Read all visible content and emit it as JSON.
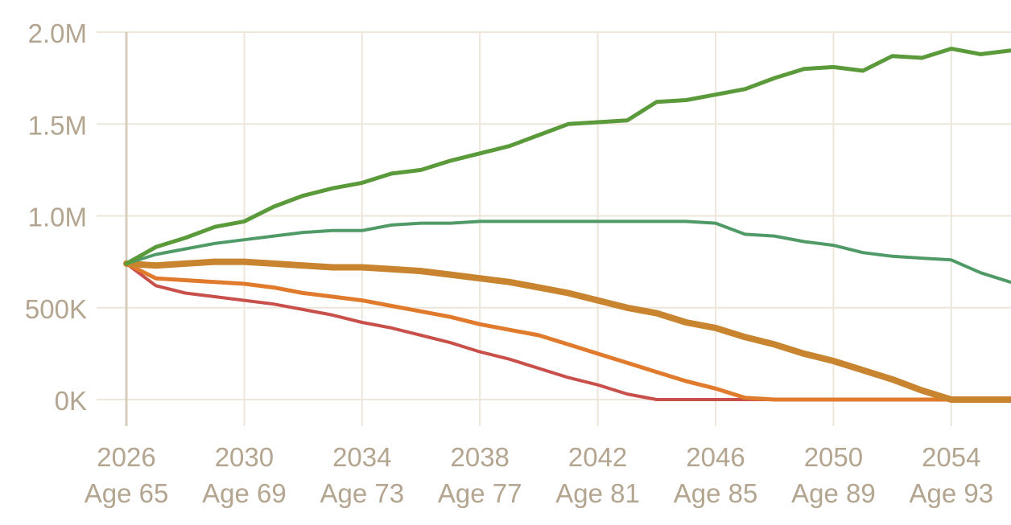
{
  "chart_data": {
    "type": "line",
    "title": "",
    "xlabel": "",
    "ylabel": "",
    "xlim": [
      2026,
      2056
    ],
    "ylim": [
      0,
      2000000
    ],
    "grid": true,
    "legend": "none",
    "x_ticks": [
      {
        "year": "2026",
        "age": "Age 65",
        "x": 2026
      },
      {
        "year": "2030",
        "age": "Age 69",
        "x": 2030
      },
      {
        "year": "2034",
        "age": "Age 73",
        "x": 2034
      },
      {
        "year": "2038",
        "age": "Age 77",
        "x": 2038
      },
      {
        "year": "2042",
        "age": "Age 81",
        "x": 2042
      },
      {
        "year": "2046",
        "age": "Age 85",
        "x": 2046
      },
      {
        "year": "2050",
        "age": "Age 89",
        "x": 2050
      },
      {
        "year": "2054",
        "age": "Age 93",
        "x": 2054
      }
    ],
    "y_ticks": [
      {
        "label": "0K",
        "value": 0
      },
      {
        "label": "500K",
        "value": 500000
      },
      {
        "label": "1.0M",
        "value": 1000000
      },
      {
        "label": "1.5M",
        "value": 1500000
      },
      {
        "label": "2.0M",
        "value": 2000000
      }
    ],
    "x": [
      2026,
      2027,
      2028,
      2029,
      2030,
      2031,
      2032,
      2033,
      2034,
      2035,
      2036,
      2037,
      2038,
      2039,
      2040,
      2041,
      2042,
      2043,
      2044,
      2045,
      2046,
      2047,
      2048,
      2049,
      2050,
      2051,
      2052,
      2053,
      2054,
      2055,
      2056
    ],
    "series": [
      {
        "color": "#5a9a3a",
        "values": [
          740000,
          830000,
          880000,
          940000,
          970000,
          1050000,
          1110000,
          1150000,
          1180000,
          1230000,
          1250000,
          1300000,
          1340000,
          1380000,
          1440000,
          1500000,
          1510000,
          1520000,
          1620000,
          1630000,
          1660000,
          1690000,
          1750000,
          1800000,
          1810000,
          1790000,
          1870000,
          1860000,
          1910000,
          1880000,
          1900000
        ]
      },
      {
        "color": "#4f9a66",
        "values": [
          740000,
          790000,
          820000,
          850000,
          870000,
          890000,
          910000,
          920000,
          920000,
          950000,
          960000,
          960000,
          970000,
          970000,
          970000,
          970000,
          970000,
          970000,
          970000,
          970000,
          960000,
          900000,
          890000,
          860000,
          840000,
          800000,
          780000,
          770000,
          760000,
          690000,
          640000
        ]
      },
      {
        "color": "#c8842e",
        "values": [
          740000,
          730000,
          740000,
          750000,
          750000,
          740000,
          730000,
          720000,
          720000,
          710000,
          700000,
          680000,
          660000,
          640000,
          610000,
          580000,
          540000,
          500000,
          470000,
          420000,
          390000,
          340000,
          300000,
          250000,
          210000,
          160000,
          110000,
          50000,
          0,
          0,
          0
        ]
      },
      {
        "color": "#e07a2d",
        "values": [
          740000,
          660000,
          650000,
          640000,
          630000,
          610000,
          580000,
          560000,
          540000,
          510000,
          480000,
          450000,
          410000,
          380000,
          350000,
          300000,
          250000,
          200000,
          150000,
          100000,
          60000,
          10000,
          0,
          0,
          0,
          0,
          0,
          0,
          0,
          0,
          0
        ]
      },
      {
        "color": "#c84f4a",
        "values": [
          740000,
          620000,
          580000,
          560000,
          540000,
          520000,
          490000,
          460000,
          420000,
          390000,
          350000,
          310000,
          260000,
          220000,
          170000,
          120000,
          80000,
          30000,
          0,
          0,
          0,
          0,
          0,
          0,
          0,
          0,
          0,
          0,
          0,
          0,
          0
        ]
      }
    ]
  }
}
